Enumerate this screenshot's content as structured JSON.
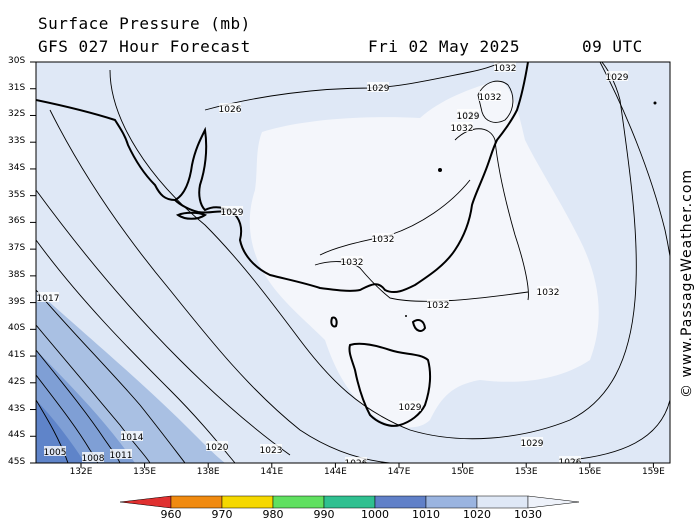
{
  "header": {
    "line1": "Surface Pressure (mb)",
    "line2": "GFS 027 Hour Forecast",
    "date": "Fri 02 May 2025",
    "time": "09 UTC"
  },
  "watermark": "© www.PassageWeather.com",
  "lat_labels": [
    "30S",
    "31S",
    "32S",
    "33S",
    "34S",
    "35S",
    "36S",
    "37S",
    "38S",
    "39S",
    "40S",
    "41S",
    "42S",
    "43S",
    "44S",
    "45S"
  ],
  "lon_labels": [
    "132E",
    "135E",
    "138E",
    "141E",
    "144E",
    "147E",
    "150E",
    "153E",
    "156E",
    "159E"
  ],
  "isobar_labels": [
    "1032",
    "1029",
    "1026",
    "1029",
    "1032",
    "1032",
    "1032",
    "1029",
    "1032",
    "1032",
    "1032",
    "1032",
    "1029",
    "1029",
    "1026",
    "1026",
    "1023",
    "1020",
    "1017",
    "1014",
    "1011",
    "1008",
    "1005",
    "1029"
  ],
  "colorbar": {
    "labels": [
      "960",
      "970",
      "980",
      "990",
      "1000",
      "1010",
      "1020",
      "1030"
    ],
    "colors": [
      "#e03030",
      "#f08a10",
      "#f5d800",
      "#60e060",
      "#30c090",
      "#6080c8",
      "#9ab4e0",
      "#dfe8f6"
    ]
  }
}
